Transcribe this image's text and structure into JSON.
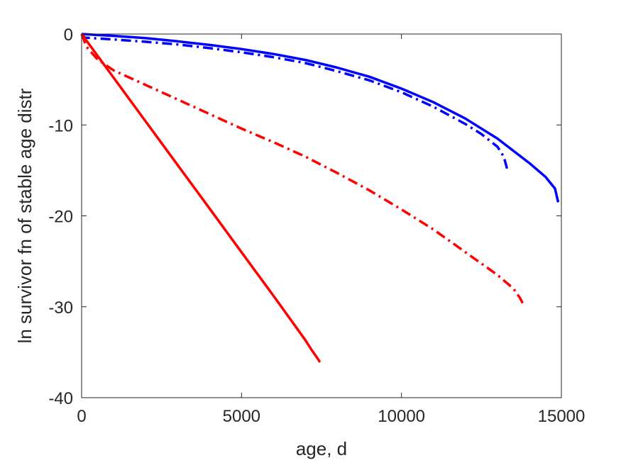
{
  "chart_data": {
    "type": "line",
    "xlabel": "age, d",
    "ylabel": "ln survivor fn of stable age distr",
    "xlim": [
      0,
      15000
    ],
    "ylim": [
      -40,
      0
    ],
    "xticks": [
      0,
      5000,
      10000,
      15000
    ],
    "yticks": [
      0,
      -10,
      -20,
      -30,
      -40
    ],
    "xtick_labels": [
      "0",
      "5000",
      "10000",
      "15000"
    ],
    "ytick_labels": [
      "0",
      "-10",
      "-20",
      "-30",
      "-40"
    ],
    "grid": false,
    "box": true,
    "series": [
      {
        "color": "#0000ff",
        "linestyle": "solid",
        "x": [
          0,
          1000,
          2000,
          3000,
          4000,
          5000,
          6000,
          7000,
          8000,
          9000,
          10000,
          11000,
          12000,
          13000,
          14000,
          14500,
          14800,
          14900
        ],
        "y": [
          0,
          -0.2,
          -0.45,
          -0.8,
          -1.2,
          -1.65,
          -2.2,
          -2.85,
          -3.7,
          -4.7,
          -6.0,
          -7.5,
          -9.3,
          -11.5,
          -14.2,
          -15.7,
          -17.0,
          -18.5
        ]
      },
      {
        "color": "#0000ff",
        "linestyle": "dashdot",
        "x": [
          0,
          100,
          1000,
          2000,
          3000,
          4000,
          5000,
          6000,
          7000,
          8000,
          9000,
          10000,
          11000,
          12000,
          12500,
          13000,
          13200,
          13300
        ],
        "y": [
          0,
          -0.4,
          -0.6,
          -0.85,
          -1.15,
          -1.55,
          -2.0,
          -2.55,
          -3.2,
          -4.1,
          -5.1,
          -6.4,
          -8.0,
          -9.9,
          -11.0,
          -12.4,
          -13.5,
          -14.8
        ]
      },
      {
        "color": "#ff0000",
        "linestyle": "solid",
        "x": [
          0,
          1000,
          2000,
          3000,
          4000,
          5000,
          6000,
          7000,
          7200,
          7400,
          7450
        ],
        "y": [
          0,
          -4.8,
          -9.6,
          -14.4,
          -19.2,
          -24.0,
          -28.8,
          -33.7,
          -34.8,
          -35.8,
          -36.1
        ]
      },
      {
        "color": "#ff0000",
        "linestyle": "dashdot",
        "x": [
          0,
          150,
          500,
          1000,
          2000,
          3000,
          4000,
          5000,
          6000,
          7000,
          8000,
          9000,
          10000,
          11000,
          12000,
          13000,
          13500,
          13700,
          13850
        ],
        "y": [
          0,
          -1.4,
          -2.8,
          -4.0,
          -5.6,
          -7.2,
          -8.8,
          -10.4,
          -11.9,
          -13.5,
          -15.3,
          -17.2,
          -19.3,
          -21.5,
          -24.0,
          -26.5,
          -28.0,
          -29.0,
          -30.0
        ]
      }
    ]
  }
}
